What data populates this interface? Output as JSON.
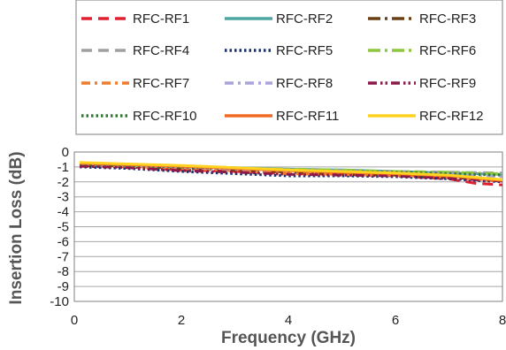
{
  "chart_data": {
    "type": "line",
    "title": "",
    "xlabel": "Frequency (GHz)",
    "ylabel": "Insertion Loss (dB)",
    "xlim": [
      0,
      8
    ],
    "ylim": [
      -10,
      0
    ],
    "xticks": [
      "0",
      "2",
      "4",
      "6",
      "8"
    ],
    "yticks": [
      "0",
      "-1",
      "-2",
      "-3",
      "-4",
      "-5",
      "-6",
      "-7",
      "-8",
      "-9",
      "-10"
    ],
    "grid": true,
    "legend_position": "top",
    "series": [
      {
        "name": "RFC-RF1",
        "color": "#e02030",
        "dash": "dash",
        "x": [
          0.1,
          1,
          2,
          3,
          4,
          5,
          6,
          7,
          7.5,
          8
        ],
        "y": [
          -0.9,
          -1.0,
          -1.2,
          -1.3,
          -1.45,
          -1.5,
          -1.6,
          -1.8,
          -2.1,
          -2.2
        ]
      },
      {
        "name": "RFC-RF2",
        "color": "#4fa6a0",
        "dash": "solid",
        "x": [
          0.1,
          1,
          2,
          3,
          4,
          5,
          6,
          7,
          8
        ],
        "y": [
          -0.75,
          -0.85,
          -0.95,
          -1.05,
          -1.15,
          -1.2,
          -1.3,
          -1.4,
          -1.5
        ]
      },
      {
        "name": "RFC-RF3",
        "color": "#6b3f14",
        "dash": "longdashdot",
        "x": [
          0.1,
          1,
          2,
          3,
          4,
          5,
          6,
          7,
          8
        ],
        "y": [
          -0.85,
          -0.95,
          -1.1,
          -1.2,
          -1.35,
          -1.45,
          -1.55,
          -1.7,
          -1.9
        ]
      },
      {
        "name": "RFC-RF4",
        "color": "#a0a0a0",
        "dash": "dash",
        "x": [
          0.1,
          1,
          2,
          3,
          4,
          5,
          6,
          7,
          8
        ],
        "y": [
          -0.8,
          -0.9,
          -1.0,
          -1.1,
          -1.2,
          -1.25,
          -1.3,
          -1.35,
          -1.4
        ]
      },
      {
        "name": "RFC-RF5",
        "color": "#1a2f6e",
        "dash": "dot",
        "x": [
          0.1,
          1,
          2,
          3,
          4,
          5,
          6,
          7,
          8
        ],
        "y": [
          -1.0,
          -1.1,
          -1.3,
          -1.45,
          -1.6,
          -1.6,
          -1.65,
          -1.8,
          -2.0
        ]
      },
      {
        "name": "RFC-RF6",
        "color": "#8dc63f",
        "dash": "longdashdot",
        "x": [
          0.1,
          1,
          2,
          3,
          4,
          5,
          6,
          7,
          8
        ],
        "y": [
          -0.75,
          -0.85,
          -0.95,
          -1.05,
          -1.15,
          -1.2,
          -1.3,
          -1.35,
          -1.45
        ]
      },
      {
        "name": "RFC-RF7",
        "color": "#f07b2e",
        "dash": "dashdot",
        "x": [
          0.1,
          1,
          2,
          3,
          4,
          5,
          6,
          7,
          8
        ],
        "y": [
          -0.85,
          -0.95,
          -1.1,
          -1.25,
          -1.45,
          -1.5,
          -1.55,
          -1.7,
          -1.95
        ]
      },
      {
        "name": "RFC-RF8",
        "color": "#a9a4dc",
        "dash": "dashdot",
        "x": [
          0.1,
          1,
          2,
          3,
          4,
          5,
          6,
          7,
          8
        ],
        "y": [
          -0.8,
          -0.9,
          -1.0,
          -1.15,
          -1.25,
          -1.3,
          -1.4,
          -1.5,
          -1.65
        ]
      },
      {
        "name": "RFC-RF9",
        "color": "#8b1a4a",
        "dash": "dashdotdot",
        "x": [
          0.1,
          1,
          2,
          3,
          4,
          5,
          6,
          7,
          8
        ],
        "y": [
          -0.95,
          -1.05,
          -1.25,
          -1.35,
          -1.5,
          -1.55,
          -1.6,
          -1.75,
          -1.95
        ]
      },
      {
        "name": "RFC-RF10",
        "color": "#2f7a2f",
        "dash": "dot",
        "x": [
          0.1,
          1,
          2,
          3,
          4,
          5,
          6,
          7,
          8
        ],
        "y": [
          -0.8,
          -0.9,
          -1.0,
          -1.1,
          -1.2,
          -1.3,
          -1.35,
          -1.45,
          -1.55
        ]
      },
      {
        "name": "RFC-RF11",
        "color": "#f26a22",
        "dash": "solid",
        "x": [
          0.1,
          1,
          2,
          3,
          4,
          5,
          6,
          7,
          8
        ],
        "y": [
          -0.75,
          -0.85,
          -0.95,
          -1.1,
          -1.25,
          -1.35,
          -1.45,
          -1.6,
          -1.9
        ]
      },
      {
        "name": "RFC-RF12",
        "color": "#ffd21f",
        "dash": "solid",
        "x": [
          0.1,
          1,
          2,
          3,
          4,
          5,
          6,
          7,
          8
        ],
        "y": [
          -0.7,
          -0.8,
          -0.9,
          -1.05,
          -1.2,
          -1.3,
          -1.4,
          -1.55,
          -1.85
        ]
      }
    ]
  }
}
